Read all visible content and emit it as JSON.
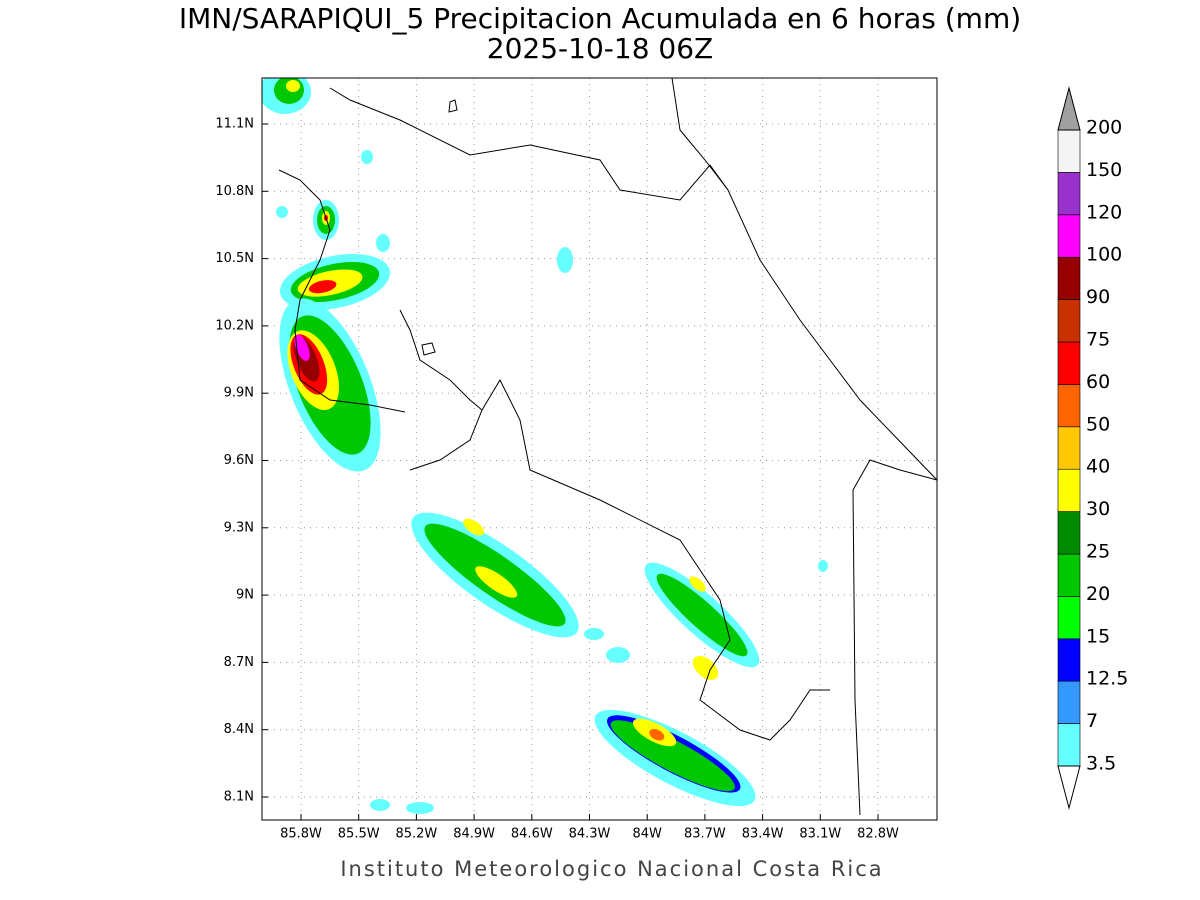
{
  "header": {
    "title": "IMN/SARAPIQUI_5 Precipitacion Acumulada en 6 horas (mm)",
    "subtitle": "2025-10-18 06Z"
  },
  "map": {
    "lon_ticks": [
      {
        "value": -85.8,
        "label": "85.8W"
      },
      {
        "value": -85.5,
        "label": "85.5W"
      },
      {
        "value": -85.2,
        "label": "85.2W"
      },
      {
        "value": -84.9,
        "label": "84.9W"
      },
      {
        "value": -84.6,
        "label": "84.6W"
      },
      {
        "value": -84.3,
        "label": "84.3W"
      },
      {
        "value": -84,
        "label": "84W"
      },
      {
        "value": -83.7,
        "label": "83.7W"
      },
      {
        "value": -83.4,
        "label": "83.4W"
      },
      {
        "value": -83.1,
        "label": "83.1W"
      },
      {
        "value": -82.8,
        "label": "82.8W"
      }
    ],
    "lat_ticks": [
      {
        "value": 8.1,
        "label": "8.1N"
      },
      {
        "value": 8.4,
        "label": "8.4N"
      },
      {
        "value": 8.7,
        "label": "8.7N"
      },
      {
        "value": 9,
        "label": "9N"
      },
      {
        "value": 9.3,
        "label": "9.3N"
      },
      {
        "value": 9.6,
        "label": "9.6N"
      },
      {
        "value": 9.9,
        "label": "9.9N"
      },
      {
        "value": 10.2,
        "label": "10.2N"
      },
      {
        "value": 10.5,
        "label": "10.5N"
      },
      {
        "value": 10.8,
        "label": "10.8N"
      },
      {
        "value": 11.1,
        "label": "11.1N"
      }
    ],
    "grid": true,
    "footer": "Instituto Meteorologico Nacional Costa Rica"
  },
  "colorbar": {
    "levels": [
      3.5,
      7,
      12.5,
      15,
      20,
      25,
      30,
      40,
      50,
      60,
      75,
      90,
      100,
      120,
      150,
      200
    ],
    "colors": [
      "#66ffff",
      "#3399ff",
      "#0000ff",
      "#00ff00",
      "#00c800",
      "#008c00",
      "#ffff00",
      "#ffc800",
      "#ff6400",
      "#ff0000",
      "#c83200",
      "#960000",
      "#ff00ff",
      "#9932cc",
      "#f4f4f4"
    ],
    "under_color": "#ffffff",
    "over_color": "#a0a0a0"
  }
}
